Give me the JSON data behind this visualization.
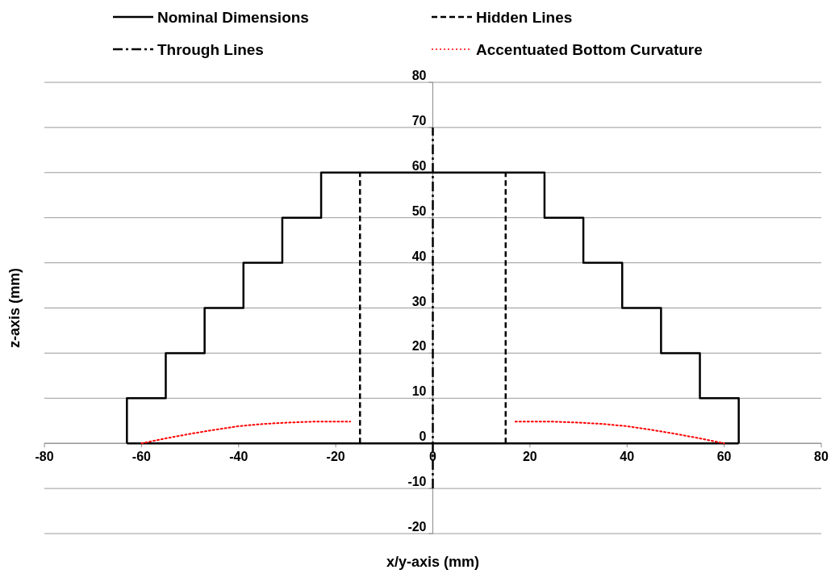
{
  "chart_data": {
    "type": "line",
    "xlabel": "x/y-axis (mm)",
    "ylabel": "z-axis (mm)",
    "xlim": [
      -80,
      80
    ],
    "xticks": [
      -80,
      -60,
      -40,
      -20,
      0,
      20,
      40,
      60,
      80
    ],
    "ylim": [
      -20,
      80
    ],
    "yticks": [
      -20,
      -10,
      0,
      10,
      20,
      30,
      40,
      50,
      60,
      70,
      80
    ],
    "grid": "y",
    "legend": "top",
    "marker": "none",
    "series": [
      {
        "name": "Nominal Dimensions",
        "color": "#000000",
        "line_style": "solid",
        "x": [
          -63,
          -63,
          -55,
          -55,
          -47,
          -47,
          -39,
          -39,
          -31,
          -31,
          -23,
          -23,
          23,
          23,
          31,
          31,
          39,
          39,
          47,
          47,
          55,
          55,
          63,
          63
        ],
        "values": [
          0,
          10,
          10,
          20,
          20,
          30,
          30,
          40,
          40,
          50,
          50,
          60,
          60,
          50,
          50,
          40,
          40,
          30,
          30,
          20,
          20,
          10,
          10,
          0
        ]
      },
      {
        "color": "#000000",
        "line_style": "solid",
        "x": [
          -63,
          63
        ],
        "values": [
          0,
          0
        ]
      },
      {
        "name": "Hidden Lines",
        "color": "#000000",
        "line_style": "dashed",
        "x": [
          -15,
          -15,
          0,
          15,
          15
        ],
        "values": [
          0,
          60,
          null,
          0,
          60
        ]
      },
      {
        "name": "Through Lines",
        "color": "#000000",
        "line_style": "dashdot",
        "x": [
          0,
          0
        ],
        "values": [
          -10,
          70
        ]
      },
      {
        "name": "Accentuated Bottom Curvature",
        "color": "#ff0000",
        "line_style": "dotted",
        "x": [
          -60,
          -55,
          -50,
          -45,
          -40,
          -35,
          -30,
          -25,
          -20,
          -17,
          0,
          17,
          20,
          25,
          30,
          35,
          40,
          45,
          50,
          55,
          60
        ],
        "values": [
          0,
          1.1,
          2.1,
          3.0,
          3.8,
          4.3,
          4.6,
          4.8,
          4.8,
          4.8,
          null,
          4.8,
          4.8,
          4.8,
          4.6,
          4.3,
          3.8,
          3.0,
          2.1,
          1.1,
          0
        ]
      }
    ]
  }
}
